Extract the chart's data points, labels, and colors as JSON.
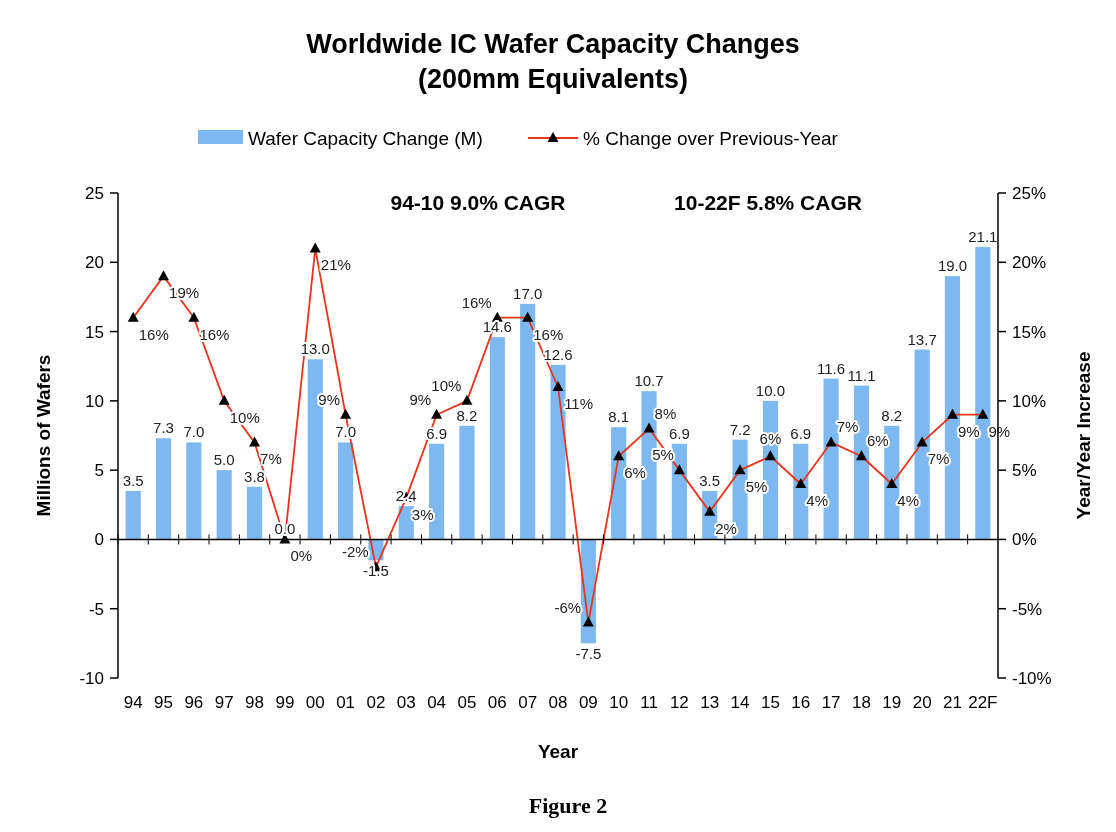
{
  "chart_data": {
    "type": "bar",
    "title": "Worldwide IC Wafer Capacity Changes",
    "subtitle": "(200mm Equivalents)",
    "xlabel": "Year",
    "ylabel": "Millions of Wafers",
    "y2label": "Year/Year Increase",
    "categories": [
      "94",
      "95",
      "96",
      "97",
      "98",
      "99",
      "00",
      "01",
      "02",
      "03",
      "04",
      "05",
      "06",
      "07",
      "08",
      "09",
      "10",
      "11",
      "12",
      "13",
      "14",
      "15",
      "16",
      "17",
      "18",
      "19",
      "20",
      "21",
      "22F"
    ],
    "series": [
      {
        "name": "Wafer Capacity Change (M)",
        "color": "#7db9f0",
        "values": [
          3.5,
          7.3,
          7.0,
          5.0,
          3.8,
          0.0,
          13.0,
          7.0,
          -1.5,
          2.4,
          6.9,
          8.2,
          14.6,
          17.0,
          12.6,
          -7.5,
          8.1,
          10.7,
          6.9,
          3.5,
          7.2,
          10.0,
          6.9,
          11.6,
          11.1,
          8.2,
          13.7,
          19.0,
          21.1
        ],
        "value_labels": [
          "3.5",
          "7.3",
          "7.0",
          "5.0",
          "3.8",
          "0.0",
          "13.0",
          "7.0",
          "-1.5",
          "2.4",
          "6.9",
          "8.2",
          "14.6",
          "17.0",
          "12.6",
          "-7.5",
          "8.1",
          "10.7",
          "6.9",
          "3.5",
          "7.2",
          "10.0",
          "6.9",
          "11.6",
          "11.1",
          "8.2",
          "13.7",
          "19.0",
          "21.1"
        ]
      },
      {
        "name": "% Change over Previous-Year",
        "type": "line",
        "axis": "y2",
        "color": "#e8341c",
        "marker": "triangle",
        "values": [
          16,
          19,
          16,
          10,
          7,
          0,
          21,
          9,
          -2,
          3,
          9,
          10,
          16,
          16,
          11,
          -6,
          6,
          8,
          5,
          2,
          5,
          6,
          4,
          7,
          6,
          4,
          7,
          9,
          9
        ],
        "value_labels": [
          "16%",
          "19%",
          "16%",
          "10%",
          "7%",
          "0%",
          "21%",
          "9%",
          "-2%",
          "3%",
          "9%",
          "10%",
          "16%",
          "16%",
          "11%",
          "-6%",
          "6%",
          "8%",
          "5%",
          "2%",
          "5%",
          "6%",
          "4%",
          "7%",
          "6%",
          "4%",
          "7%",
          "9%",
          "9%"
        ]
      }
    ],
    "ylim": [
      -10,
      25
    ],
    "yticks": [
      -10,
      -5,
      0,
      5,
      10,
      15,
      20,
      25
    ],
    "y2lim": [
      -10,
      25
    ],
    "y2ticks": [
      {
        "value": -10,
        "label": "-10%"
      },
      {
        "value": -5,
        "label": "-5%"
      },
      {
        "value": 0,
        "label": "0%"
      },
      {
        "value": 5,
        "label": "5%"
      },
      {
        "value": 10,
        "label": "10%"
      },
      {
        "value": 15,
        "label": "15%"
      },
      {
        "value": 20,
        "label": "20%"
      },
      {
        "value": 25,
        "label": "25%"
      }
    ],
    "legend": "top",
    "annotations": [
      "94-10 9.0% CAGR",
      "10-22F 5.8% CAGR",
      "Figure 2"
    ]
  }
}
